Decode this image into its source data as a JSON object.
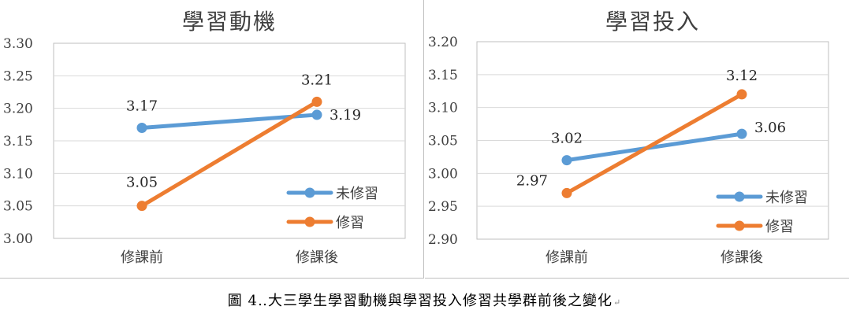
{
  "caption": {
    "text": "圖 4‥大三學生學習動機與學習投入修習共學群前後之變化",
    "return_mark": "↵"
  },
  "colors": {
    "series_0": "#5b9bd5",
    "series_1": "#ed7d31",
    "grid": "#d9d9d9",
    "axis": "#bfbfbf",
    "text": "#404040"
  },
  "chart_data": [
    {
      "type": "line",
      "title": "學習動機",
      "categories": [
        "修課前",
        "修課後"
      ],
      "series": [
        {
          "name": "未修習",
          "values": [
            3.17,
            3.19
          ]
        },
        {
          "name": "修習",
          "values": [
            3.05,
            3.21
          ]
        }
      ],
      "ylim": [
        3.0,
        3.3
      ],
      "ytick_step": 0.05,
      "ytick_labels": [
        "3.00",
        "3.05",
        "3.10",
        "3.15",
        "3.20",
        "3.25",
        "3.30"
      ],
      "grid": true,
      "legend": "bottom-right"
    },
    {
      "type": "line",
      "title": "學習投入",
      "categories": [
        "修課前",
        "修課後"
      ],
      "series": [
        {
          "name": "未修習",
          "values": [
            3.02,
            3.06
          ]
        },
        {
          "name": "修習",
          "values": [
            2.97,
            3.12
          ]
        }
      ],
      "ylim": [
        2.9,
        3.2
      ],
      "ytick_step": 0.05,
      "ytick_labels": [
        "2.90",
        "2.95",
        "3.00",
        "3.05",
        "3.10",
        "3.15",
        "3.20"
      ],
      "grid": true,
      "legend": "bottom-right"
    }
  ]
}
